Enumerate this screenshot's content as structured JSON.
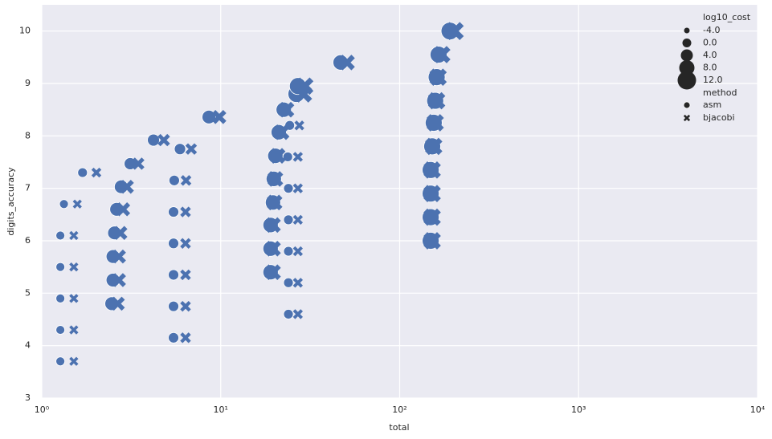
{
  "chart_data": {
    "type": "scatter",
    "x_label": "total",
    "y_label": "digits_accuracy",
    "xscale": "log",
    "xlim": [
      1,
      10000
    ],
    "xticks": [
      {
        "value": 1,
        "label": "10⁰"
      },
      {
        "value": 10,
        "label": "10¹"
      },
      {
        "value": 100,
        "label": "10²"
      },
      {
        "value": 1000,
        "label": "10³"
      },
      {
        "value": 10000,
        "label": "10⁴"
      }
    ],
    "ylim": [
      3,
      10.5
    ],
    "yticks": [
      3,
      4,
      5,
      6,
      7,
      8,
      9,
      10
    ],
    "grid": true,
    "size_legend_title": "log10_cost",
    "size_ticks": [
      {
        "value": -4,
        "label": "-4.0"
      },
      {
        "value": 0,
        "label": "0.0"
      },
      {
        "value": 4,
        "label": "4.0"
      },
      {
        "value": 8,
        "label": "8.0"
      },
      {
        "value": 12,
        "label": "12.0"
      }
    ],
    "style_legend_title": "method",
    "legend_position": "upper right",
    "series": [
      {
        "name": "asm",
        "marker": "circle",
        "color": "#4c72b0",
        "x": [
          1.27,
          1.27,
          1.27,
          1.27,
          1.27,
          1.33,
          1.69,
          3.12,
          4.21,
          8.59,
          2.46,
          2.5,
          2.5,
          2.55,
          2.62,
          2.78,
          5.45,
          5.45,
          5.45,
          5.45,
          5.45,
          5.5,
          5.92,
          19,
          19,
          19,
          19.6,
          19.8,
          20.2,
          21.1,
          22.5,
          26.5,
          27,
          23.9,
          23.9,
          23.9,
          23.9,
          23.9,
          23.7,
          24.3,
          46.8,
          149,
          149,
          149,
          149,
          152,
          155,
          158,
          161,
          165,
          191
        ],
        "values": [
          3.7,
          4.3,
          4.9,
          5.5,
          6.1,
          6.7,
          7.3,
          7.47,
          7.92,
          8.36,
          4.8,
          5.25,
          5.7,
          6.15,
          6.6,
          7.03,
          4.15,
          4.75,
          5.35,
          5.95,
          6.55,
          7.15,
          7.75,
          5.4,
          5.85,
          6.3,
          6.73,
          7.18,
          7.62,
          8.07,
          8.5,
          8.8,
          8.95,
          4.6,
          5.2,
          5.8,
          6.4,
          7.0,
          7.6,
          8.2,
          9.4,
          6.0,
          6.45,
          6.9,
          7.35,
          7.8,
          8.25,
          8.67,
          9.12,
          9.55,
          10.0
        ],
        "sizes": [
          0,
          0,
          0,
          0,
          0,
          0,
          1,
          4,
          4,
          6,
          6,
          6,
          6,
          6,
          6,
          6,
          2,
          2,
          2,
          2,
          2,
          2,
          3,
          8,
          8,
          8,
          8,
          8,
          8,
          8,
          8,
          10,
          10,
          1,
          1,
          1,
          1,
          1,
          1,
          1,
          8,
          10,
          10,
          10,
          10,
          10,
          10,
          10,
          10,
          10,
          11
        ]
      },
      {
        "name": "bjacobi",
        "marker": "x",
        "color": "#4c72b0",
        "x": [
          1.51,
          1.51,
          1.51,
          1.51,
          1.51,
          1.58,
          2.02,
          3.46,
          4.81,
          9.82,
          2.66,
          2.7,
          2.7,
          2.75,
          2.85,
          2.99,
          6.36,
          6.36,
          6.36,
          6.36,
          6.36,
          6.4,
          6.84,
          19.6,
          19.6,
          19.6,
          20,
          20.2,
          20.8,
          21.9,
          23.3,
          29,
          29.5,
          27,
          27,
          27,
          27,
          27,
          27,
          27.5,
          50.8,
          152,
          152,
          152,
          152,
          155,
          158,
          161,
          164,
          172,
          203
        ],
        "values": [
          3.7,
          4.3,
          4.9,
          5.5,
          6.1,
          6.7,
          7.3,
          7.47,
          7.92,
          8.36,
          4.8,
          5.25,
          5.7,
          6.15,
          6.6,
          7.03,
          4.15,
          4.75,
          5.35,
          5.95,
          6.55,
          7.15,
          7.75,
          5.4,
          5.85,
          6.3,
          6.73,
          7.18,
          7.62,
          8.07,
          8.5,
          8.8,
          8.95,
          4.6,
          5.2,
          5.8,
          6.4,
          7.0,
          7.6,
          8.2,
          9.4,
          6.0,
          6.45,
          6.9,
          7.35,
          7.8,
          8.25,
          8.67,
          9.12,
          9.55,
          10.0
        ],
        "sizes": [
          0,
          0,
          0,
          0,
          0,
          0,
          1,
          4,
          4,
          6,
          6,
          6,
          6,
          6,
          6,
          6,
          2,
          2,
          2,
          2,
          2,
          2,
          3,
          8,
          8,
          8,
          8,
          8,
          8,
          8,
          8,
          10,
          10,
          1,
          1,
          1,
          1,
          1,
          1,
          1,
          8,
          10,
          10,
          10,
          10,
          10,
          10,
          10,
          10,
          10,
          11
        ]
      }
    ]
  }
}
